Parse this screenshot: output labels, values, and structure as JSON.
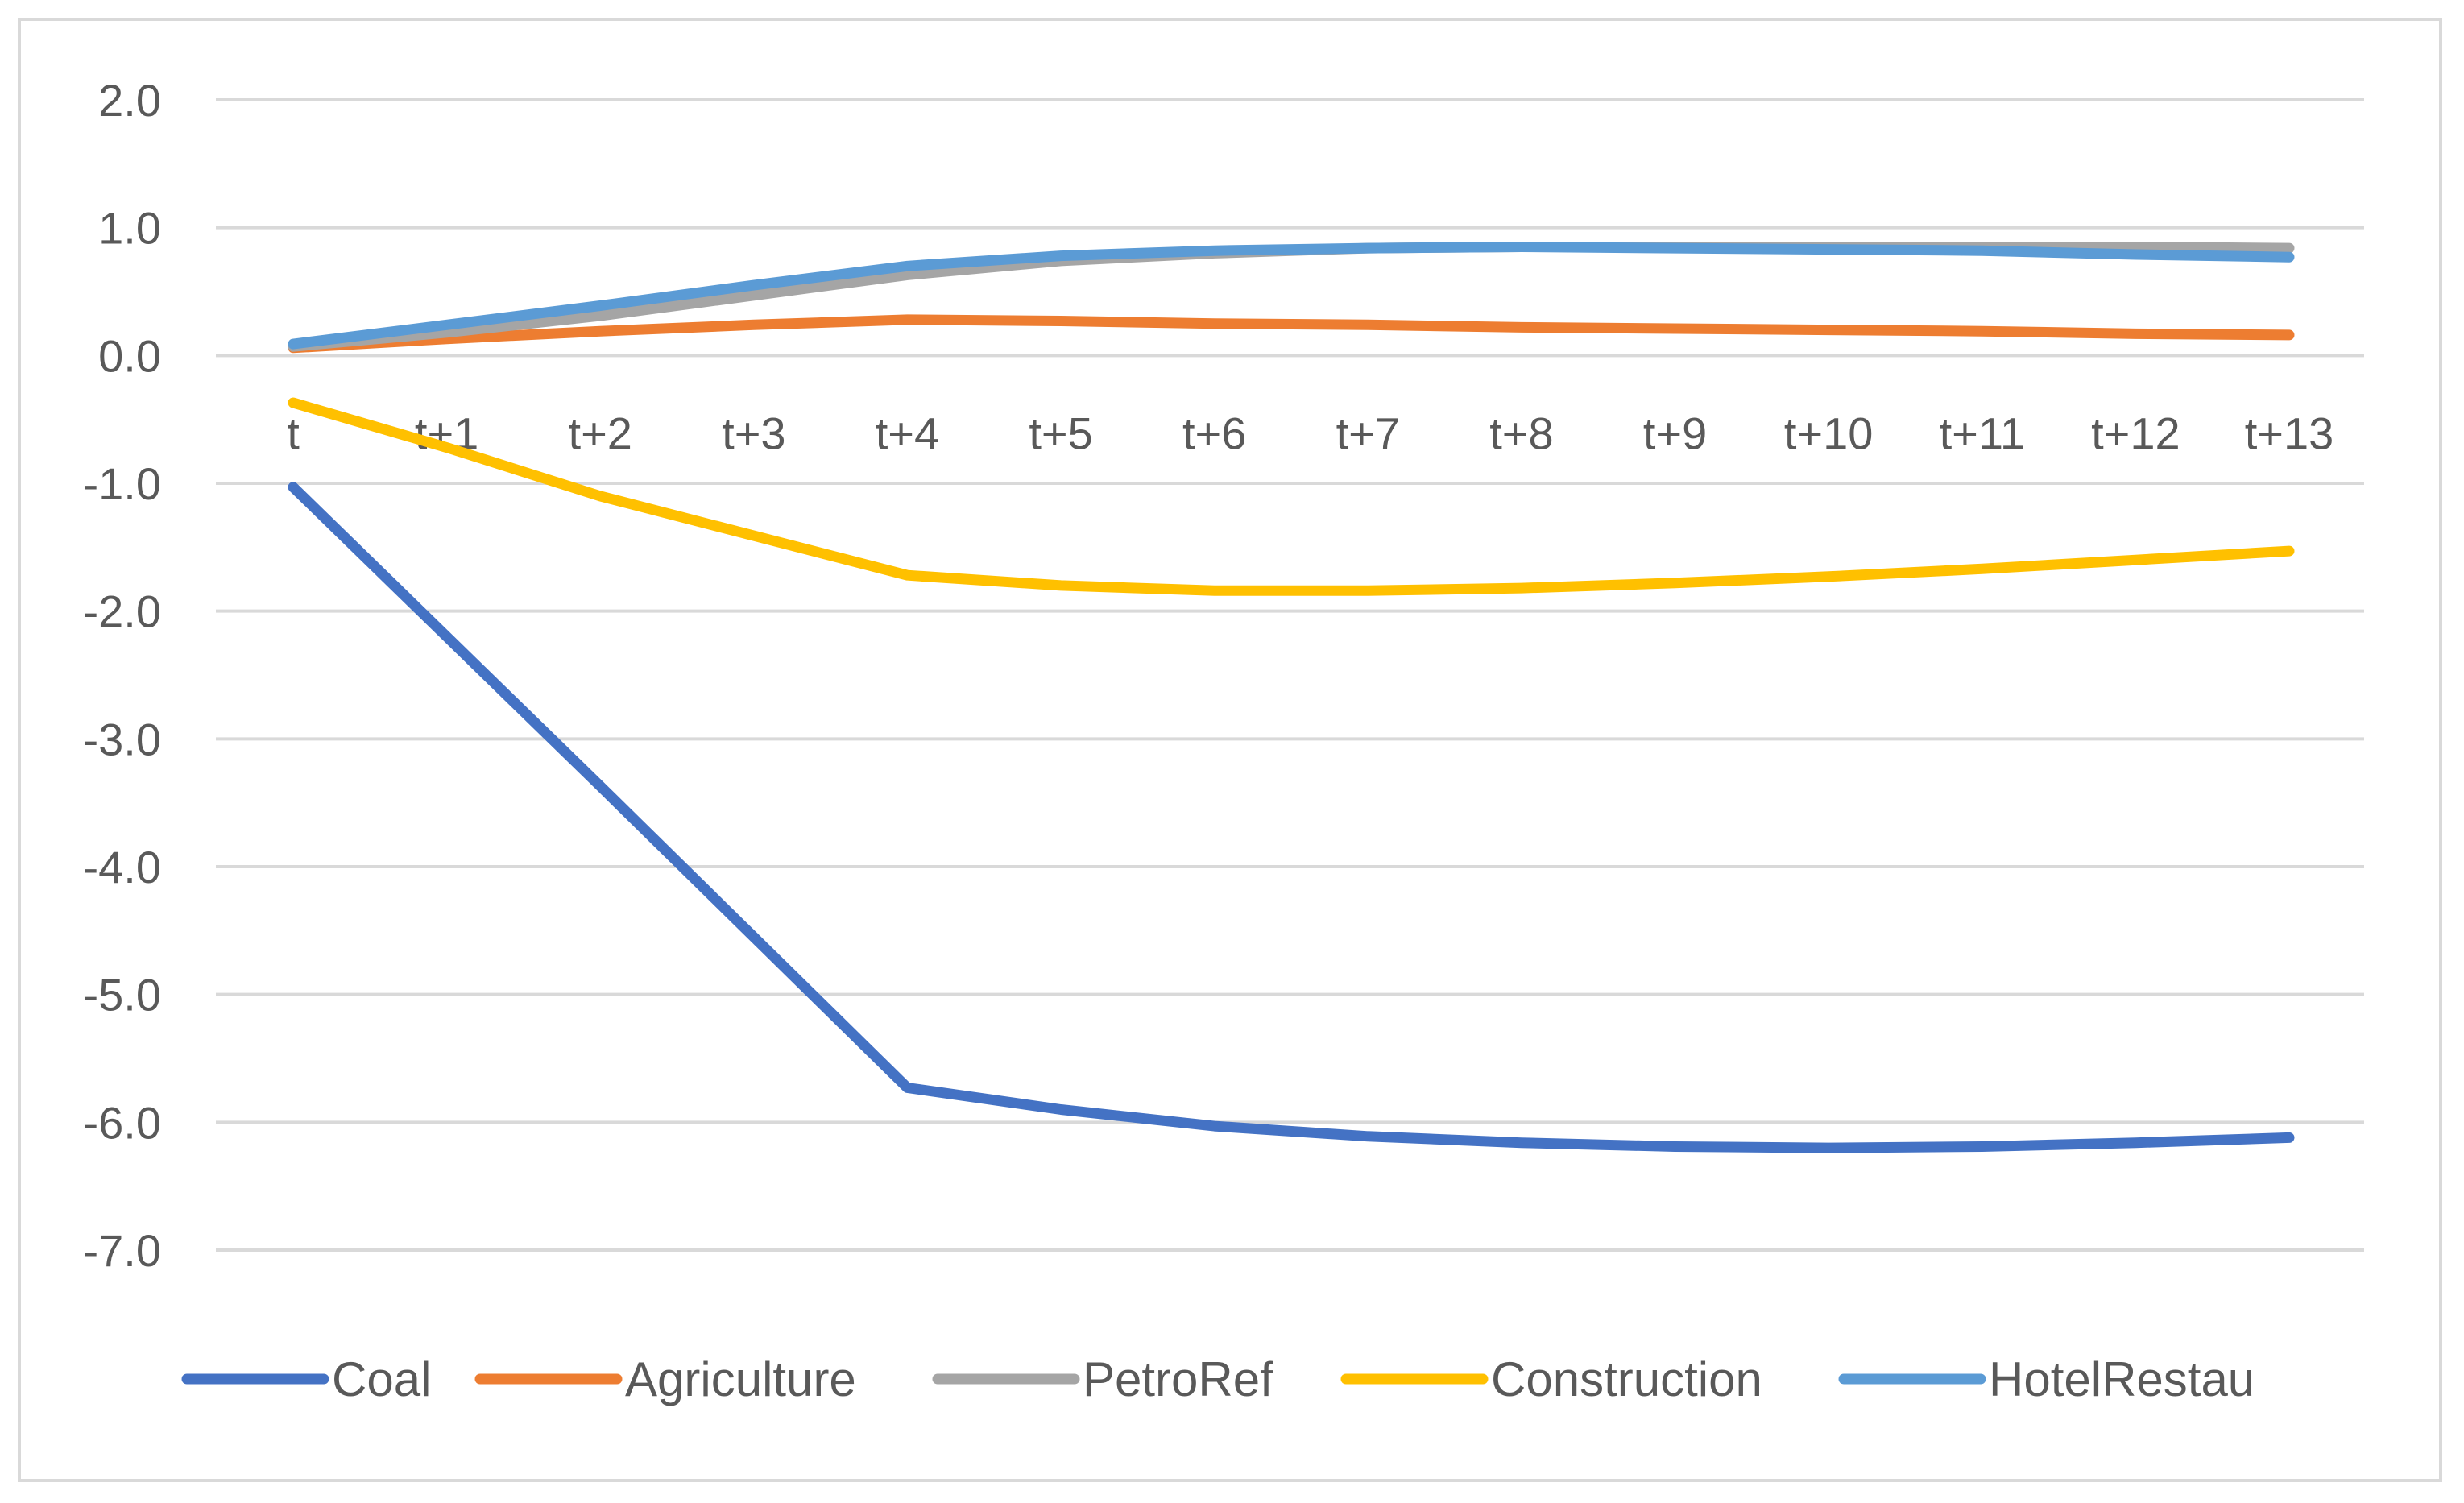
{
  "chart_data": {
    "type": "line",
    "title": "",
    "xlabel": "",
    "ylabel": "",
    "ylim": [
      -7.0,
      2.0
    ],
    "yticks": [
      "2.0",
      "1.0",
      "0.0",
      "-1.0",
      "-2.0",
      "-3.0",
      "-4.0",
      "-5.0",
      "-6.0",
      "-7.0"
    ],
    "ytick_values": [
      2,
      1,
      0,
      -1,
      -2,
      -3,
      -4,
      -5,
      -6,
      -7
    ],
    "categories": [
      "t",
      "t+1",
      "t+2",
      "t+3",
      "t+4",
      "t+5",
      "t+6",
      "t+7",
      "t+8",
      "t+9",
      "t+10",
      "t+11",
      "t+12",
      "t+13"
    ],
    "legend_position": "bottom",
    "grid": true,
    "series": [
      {
        "name": "Coal",
        "color": "#4472C4",
        "values": [
          -1.03,
          -2.2,
          -3.37,
          -4.55,
          -5.73,
          -5.9,
          -6.03,
          -6.11,
          -6.16,
          -6.19,
          -6.2,
          -6.19,
          -6.16,
          -6.12
        ]
      },
      {
        "name": "Agriculture",
        "color": "#ED7D31",
        "values": [
          0.06,
          0.13,
          0.19,
          0.24,
          0.28,
          0.27,
          0.25,
          0.24,
          0.22,
          0.21,
          0.2,
          0.19,
          0.17,
          0.16
        ]
      },
      {
        "name": "PetroRef",
        "color": "#A5A5A5",
        "values": [
          0.07,
          0.18,
          0.31,
          0.47,
          0.63,
          0.74,
          0.8,
          0.84,
          0.85,
          0.85,
          0.85,
          0.85,
          0.85,
          0.84
        ]
      },
      {
        "name": "Construction",
        "color": "#FFC000",
        "values": [
          -0.37,
          -0.72,
          -1.1,
          -1.41,
          -1.72,
          -1.8,
          -1.84,
          -1.84,
          -1.82,
          -1.78,
          -1.73,
          -1.67,
          -1.6,
          -1.53
        ]
      },
      {
        "name": "HotelRestau",
        "color": "#5B9BD5",
        "values": [
          0.09,
          0.24,
          0.39,
          0.55,
          0.7,
          0.78,
          0.82,
          0.84,
          0.85,
          0.84,
          0.83,
          0.82,
          0.79,
          0.77
        ]
      }
    ]
  }
}
